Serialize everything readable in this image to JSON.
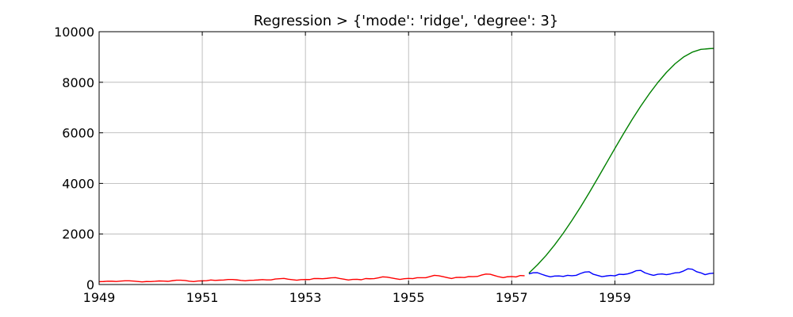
{
  "chart_data": {
    "type": "line",
    "title": "Regression > {'mode': 'ridge', 'degree': 3}",
    "xlabel": "",
    "ylabel": "",
    "xlim": [
      1949,
      1960.9167
    ],
    "ylim": [
      0,
      10000
    ],
    "xticks": [
      1949,
      1951,
      1953,
      1955,
      1957,
      1959
    ],
    "xtick_labels": [
      "1949",
      "1951",
      "1953",
      "1955",
      "1957",
      "1959"
    ],
    "yticks": [
      0,
      2000,
      4000,
      6000,
      8000,
      10000
    ],
    "ytick_labels": [
      "0",
      "2000",
      "4000",
      "6000",
      "8000",
      "10000"
    ],
    "grid": true,
    "legend": "none",
    "series": [
      {
        "color": "#ff0000",
        "x": [
          1949.0,
          1949.0833,
          1949.1667,
          1949.25,
          1949.3333,
          1949.4167,
          1949.5,
          1949.5833,
          1949.6667,
          1949.75,
          1949.8333,
          1949.9167,
          1950.0,
          1950.0833,
          1950.1667,
          1950.25,
          1950.3333,
          1950.4167,
          1950.5,
          1950.5833,
          1950.6667,
          1950.75,
          1950.8333,
          1950.9167,
          1951.0,
          1951.0833,
          1951.1667,
          1951.25,
          1951.3333,
          1951.4167,
          1951.5,
          1951.5833,
          1951.6667,
          1951.75,
          1951.8333,
          1951.9167,
          1952.0,
          1952.0833,
          1952.1667,
          1952.25,
          1952.3333,
          1952.4167,
          1952.5,
          1952.5833,
          1952.6667,
          1952.75,
          1952.8333,
          1952.9167,
          1953.0,
          1953.0833,
          1953.1667,
          1953.25,
          1953.3333,
          1953.4167,
          1953.5,
          1953.5833,
          1953.6667,
          1953.75,
          1953.8333,
          1953.9167,
          1954.0,
          1954.0833,
          1954.1667,
          1954.25,
          1954.3333,
          1954.4167,
          1954.5,
          1954.5833,
          1954.6667,
          1954.75,
          1954.8333,
          1954.9167,
          1955.0,
          1955.0833,
          1955.1667,
          1955.25,
          1955.3333,
          1955.4167,
          1955.5,
          1955.5833,
          1955.6667,
          1955.75,
          1955.8333,
          1955.9167,
          1956.0,
          1956.0833,
          1956.1667,
          1956.25,
          1956.3333,
          1956.4167,
          1956.5,
          1956.5833,
          1956.6667,
          1956.75,
          1956.8333,
          1956.9167,
          1957.0,
          1957.0833,
          1957.1667,
          1957.25
        ],
        "y": [
          112,
          118,
          132,
          129,
          121,
          135,
          148,
          148,
          136,
          119,
          104,
          118,
          115,
          126,
          141,
          135,
          125,
          149,
          170,
          170,
          158,
          133,
          114,
          140,
          145,
          150,
          178,
          163,
          172,
          178,
          199,
          199,
          184,
          162,
          146,
          166,
          171,
          180,
          193,
          181,
          183,
          218,
          230,
          242,
          209,
          191,
          172,
          194,
          196,
          196,
          236,
          235,
          229,
          243,
          264,
          272,
          237,
          211,
          180,
          201,
          204,
          188,
          235,
          227,
          234,
          264,
          302,
          293,
          259,
          229,
          203,
          229,
          242,
          233,
          267,
          269,
          270,
          315,
          364,
          347,
          312,
          274,
          237,
          278,
          284,
          277,
          317,
          313,
          318,
          374,
          413,
          405,
          355,
          306,
          271,
          306,
          315,
          301,
          356,
          348
        ]
      },
      {
        "color": "#0000ff",
        "x": [
          1957.3333,
          1957.4167,
          1957.5,
          1957.5833,
          1957.6667,
          1957.75,
          1957.8333,
          1957.9167,
          1958.0,
          1958.0833,
          1958.1667,
          1958.25,
          1958.3333,
          1958.4167,
          1958.5,
          1958.5833,
          1958.6667,
          1958.75,
          1958.8333,
          1958.9167,
          1959.0,
          1959.0833,
          1959.1667,
          1959.25,
          1959.3333,
          1959.4167,
          1959.5,
          1959.5833,
          1959.6667,
          1959.75,
          1959.8333,
          1959.9167,
          1960.0,
          1960.0833,
          1960.1667,
          1960.25,
          1960.3333,
          1960.4167,
          1960.5,
          1960.5833,
          1960.6667,
          1960.75,
          1960.8333,
          1960.9167
        ],
        "y": [
          422,
          465,
          467,
          404,
          347,
          305,
          336,
          340,
          318,
          362,
          348,
          363,
          435,
          491,
          505,
          404,
          359,
          310,
          337,
          360,
          342,
          406,
          396,
          420,
          472,
          548,
          559,
          463,
          407,
          362,
          405,
          417,
          391,
          419,
          461,
          472,
          535,
          622,
          606,
          508,
          461,
          390,
          432,
          450
        ]
      },
      {
        "color": "#008000",
        "x": [
          1957.3333,
          1957.5,
          1957.6667,
          1957.8333,
          1958.0,
          1958.1667,
          1958.3333,
          1958.5,
          1958.6667,
          1958.8333,
          1959.0,
          1959.1667,
          1959.3333,
          1959.5,
          1959.6667,
          1959.8333,
          1960.0,
          1960.1667,
          1960.3333,
          1960.5,
          1960.6667,
          1960.8333,
          1960.9167
        ],
        "y": [
          450,
          780,
          1150,
          1570,
          2030,
          2530,
          3060,
          3620,
          4200,
          4790,
          5380,
          5960,
          6520,
          7050,
          7540,
          7990,
          8390,
          8730,
          9000,
          9190,
          9300,
          9330,
          9340
        ]
      }
    ]
  }
}
